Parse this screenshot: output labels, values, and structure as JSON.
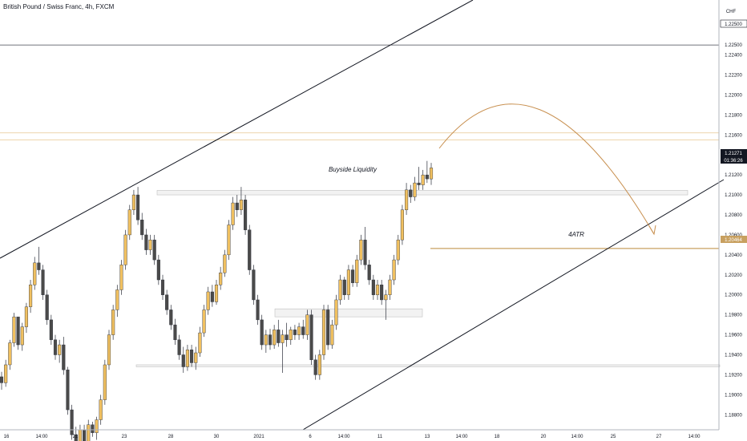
{
  "chart_data": {
    "type": "candlestick",
    "title": "British Pound / Swiss Franc, 4h, FXCM",
    "currency": "CHF",
    "ylim": [
      1.1865,
      1.2295
    ],
    "y_ticks": [
      1.225,
      1.224,
      1.222,
      1.22,
      1.218,
      1.216,
      1.214,
      1.212,
      1.21,
      1.208,
      1.206,
      1.204,
      1.202,
      1.2,
      1.198,
      1.196,
      1.194,
      1.192,
      1.19,
      1.188
    ],
    "y_tick_labels": [
      "1.22500",
      "1.22400",
      "1.22200",
      "1.22000",
      "1.21800",
      "1.21600",
      "1.21400",
      "1.21200",
      "1.21000",
      "1.20800",
      "1.20600",
      "1.20400",
      "1.20200",
      "1.20000",
      "1.19800",
      "1.19600",
      "1.19400",
      "1.19200",
      "1.19000",
      "1.18800"
    ],
    "x_ticks": [
      "16",
      "14:00",
      "21",
      "23",
      "28",
      "30",
      "2021",
      "6",
      "14:00",
      "11",
      "13",
      "14:00",
      "18",
      "20",
      "14:00",
      "25",
      "27",
      "14:00"
    ],
    "current_price": "1.21271",
    "countdown": "01:36:26",
    "target_price": "1.20464",
    "top_level": "1.22500",
    "bull_color": "#f0c060",
    "bear_color": "#4a4a4a",
    "candles": [
      [
        1.1918,
        1.1923,
        1.1905,
        1.1912
      ],
      [
        1.1912,
        1.1935,
        1.1908,
        1.193
      ],
      [
        1.193,
        1.1955,
        1.1925,
        1.1952
      ],
      [
        1.1952,
        1.1982,
        1.1948,
        1.1978
      ],
      [
        1.1978,
        1.1975,
        1.1945,
        1.195
      ],
      [
        1.195,
        1.1972,
        1.1944,
        1.1968
      ],
      [
        1.1968,
        1.1992,
        1.1962,
        1.1988
      ],
      [
        1.1988,
        1.2015,
        1.1982,
        1.201
      ],
      [
        1.201,
        1.2038,
        1.2005,
        1.2032
      ],
      [
        1.2032,
        1.2048,
        1.202,
        1.2025
      ],
      [
        1.2025,
        1.203,
        1.1995,
        1.2
      ],
      [
        1.2,
        1.2005,
        1.197,
        1.1975
      ],
      [
        1.1975,
        1.198,
        1.195,
        1.1955
      ],
      [
        1.1955,
        1.196,
        1.1935,
        1.194
      ],
      [
        1.194,
        1.1955,
        1.1932,
        1.195
      ],
      [
        1.195,
        1.1958,
        1.192,
        1.1925
      ],
      [
        1.1925,
        1.1928,
        1.188,
        1.1885
      ],
      [
        1.1885,
        1.189,
        1.1855,
        1.186
      ],
      [
        1.186,
        1.1868,
        1.184,
        1.1845
      ],
      [
        1.1845,
        1.187,
        1.184,
        1.1865
      ],
      [
        1.1865,
        1.187,
        1.1845,
        1.185
      ],
      [
        1.185,
        1.1875,
        1.1846,
        1.187
      ],
      [
        1.187,
        1.1873,
        1.1858,
        1.1862
      ],
      [
        1.1862,
        1.1878,
        1.1855,
        1.1875
      ],
      [
        1.1875,
        1.19,
        1.187,
        1.1895
      ],
      [
        1.1895,
        1.1935,
        1.189,
        1.193
      ],
      [
        1.193,
        1.1965,
        1.1925,
        1.196
      ],
      [
        1.196,
        1.199,
        1.1955,
        1.1985
      ],
      [
        1.1985,
        1.201,
        1.1978,
        1.2005
      ],
      [
        1.2005,
        1.2035,
        1.2,
        1.203
      ],
      [
        1.203,
        1.2065,
        1.2025,
        1.206
      ],
      [
        1.206,
        1.209,
        1.2055,
        1.2085
      ],
      [
        1.2085,
        1.2105,
        1.208,
        1.21
      ],
      [
        1.21,
        1.2108,
        1.207,
        1.2075
      ],
      [
        1.2075,
        1.2082,
        1.2055,
        1.206
      ],
      [
        1.206,
        1.2066,
        1.204,
        1.2045
      ],
      [
        1.2045,
        1.206,
        1.204,
        1.2055
      ],
      [
        1.2055,
        1.206,
        1.203,
        1.2035
      ],
      [
        1.2035,
        1.204,
        1.201,
        1.2015
      ],
      [
        1.2015,
        1.202,
        1.1995,
        1.2
      ],
      [
        1.2,
        1.2005,
        1.198,
        1.1985
      ],
      [
        1.1985,
        1.199,
        1.1965,
        1.197
      ],
      [
        1.197,
        1.1976,
        1.195,
        1.1955
      ],
      [
        1.1955,
        1.196,
        1.1935,
        1.194
      ],
      [
        1.194,
        1.1948,
        1.1922,
        1.1928
      ],
      [
        1.1928,
        1.195,
        1.1924,
        1.1945
      ],
      [
        1.1945,
        1.195,
        1.1928,
        1.1932
      ],
      [
        1.1932,
        1.1948,
        1.1925,
        1.1942
      ],
      [
        1.1942,
        1.1968,
        1.1938,
        1.1962
      ],
      [
        1.1962,
        1.199,
        1.1958,
        1.1985
      ],
      [
        1.1985,
        1.2008,
        1.198,
        1.2003
      ],
      [
        1.2003,
        1.201,
        1.1988,
        1.1993
      ],
      [
        1.1993,
        1.2015,
        1.199,
        1.201
      ],
      [
        1.201,
        1.2028,
        1.2005,
        1.2022
      ],
      [
        1.2022,
        1.2045,
        1.2018,
        1.204
      ],
      [
        1.204,
        1.2075,
        1.2035,
        1.207
      ],
      [
        1.207,
        1.2098,
        1.2065,
        1.2092
      ],
      [
        1.2092,
        1.21,
        1.2078,
        1.2085
      ],
      [
        1.2085,
        1.2108,
        1.208,
        1.2095
      ],
      [
        1.2095,
        1.21,
        1.206,
        1.2065
      ],
      [
        1.2065,
        1.207,
        1.202,
        1.2025
      ],
      [
        1.2025,
        1.203,
        1.199,
        1.1995
      ],
      [
        1.1995,
        1.2,
        1.197,
        1.1975
      ],
      [
        1.1975,
        1.198,
        1.1945,
        1.195
      ],
      [
        1.195,
        1.1965,
        1.1942,
        1.196
      ],
      [
        1.196,
        1.1966,
        1.1945,
        1.195
      ],
      [
        1.195,
        1.197,
        1.1946,
        1.1965
      ],
      [
        1.1965,
        1.1975,
        1.1948,
        1.1952
      ],
      [
        1.1952,
        1.1965,
        1.1922,
        1.196
      ],
      [
        1.196,
        1.1972,
        1.1948,
        1.1955
      ],
      [
        1.1955,
        1.1968,
        1.195,
        1.1965
      ],
      [
        1.1965,
        1.197,
        1.1955,
        1.196
      ],
      [
        1.196,
        1.1972,
        1.1955,
        1.1968
      ],
      [
        1.1968,
        1.1975,
        1.1956,
        1.196
      ],
      [
        1.196,
        1.1985,
        1.1955,
        1.198
      ],
      [
        1.198,
        1.1985,
        1.193,
        1.1935
      ],
      [
        1.1935,
        1.194,
        1.1915,
        1.192
      ],
      [
        1.192,
        1.1945,
        1.1915,
        1.194
      ],
      [
        1.194,
        1.199,
        1.1935,
        1.1985
      ],
      [
        1.1985,
        1.199,
        1.1945,
        1.195
      ],
      [
        1.195,
        1.1975,
        1.1946,
        1.197
      ],
      [
        1.197,
        1.2,
        1.1965,
        1.1995
      ],
      [
        1.1995,
        1.202,
        1.199,
        1.2015
      ],
      [
        1.2015,
        1.2018,
        1.1995,
        1.2
      ],
      [
        1.2,
        1.203,
        1.1995,
        1.2025
      ],
      [
        1.2025,
        1.203,
        1.2008,
        1.2012
      ],
      [
        1.2012,
        1.204,
        1.2008,
        1.2035
      ],
      [
        1.2035,
        1.206,
        1.203,
        1.2055
      ],
      [
        1.2055,
        1.2068,
        1.2025,
        1.203
      ],
      [
        1.203,
        1.2035,
        1.201,
        1.2015
      ],
      [
        1.2015,
        1.202,
        1.1995,
        1.2
      ],
      [
        1.2,
        1.2015,
        1.1995,
        1.201
      ],
      [
        1.201,
        1.2015,
        1.199,
        1.1995
      ],
      [
        1.1995,
        1.2005,
        1.1975,
        1.2
      ],
      [
        1.2,
        1.202,
        1.1995,
        1.2015
      ],
      [
        1.2015,
        1.204,
        1.201,
        1.2035
      ],
      [
        1.2035,
        1.206,
        1.203,
        1.2055
      ],
      [
        1.2055,
        1.209,
        1.205,
        1.2085
      ],
      [
        1.2085,
        1.2112,
        1.208,
        1.2105
      ],
      [
        1.2105,
        1.211,
        1.2092,
        1.2098
      ],
      [
        1.2098,
        1.2118,
        1.2094,
        1.2112
      ],
      [
        1.2112,
        1.2128,
        1.2105,
        1.211
      ],
      [
        1.211,
        1.2125,
        1.2105,
        1.212
      ],
      [
        1.212,
        1.2134,
        1.2112,
        1.2116
      ],
      [
        1.2116,
        1.2132,
        1.211,
        1.2127
      ]
    ],
    "annotations": {
      "buyside_label": "Buyside Liquidity",
      "atr_label": "4ATR"
    }
  }
}
